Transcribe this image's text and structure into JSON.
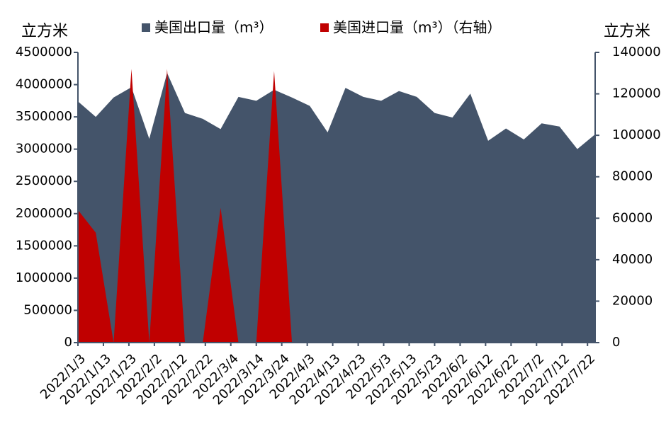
{
  "chart_data": {
    "type": "area",
    "y_label": "立方米",
    "y2_label": "立方米",
    "x": [
      "2022/1/3",
      "2022/1/10",
      "2022/1/17",
      "2022/1/24",
      "2022/1/31",
      "2022/2/7",
      "2022/2/14",
      "2022/2/21",
      "2022/2/28",
      "2022/3/7",
      "2022/3/14",
      "2022/3/21",
      "2022/3/28",
      "2022/4/4",
      "2022/4/11",
      "2022/4/18",
      "2022/4/25",
      "2022/5/2",
      "2022/5/9",
      "2022/5/16",
      "2022/5/23",
      "2022/5/30",
      "2022/6/6",
      "2022/6/13",
      "2022/6/20",
      "2022/6/27",
      "2022/7/4",
      "2022/7/11",
      "2022/7/18",
      "2022/7/25"
    ],
    "xlim": [
      "2022/1/3",
      "2022/7/25"
    ],
    "xticks": [
      "2022/1/3",
      "2022/1/13",
      "2022/1/23",
      "2022/2/2",
      "2022/2/12",
      "2022/2/22",
      "2022/3/4",
      "2022/3/14",
      "2022/3/24",
      "2022/4/3",
      "2022/4/13",
      "2022/4/23",
      "2022/5/3",
      "2022/5/13",
      "2022/5/23",
      "2022/6/2",
      "2022/6/12",
      "2022/6/22",
      "2022/7/2",
      "2022/7/12",
      "2022/7/22"
    ],
    "series": [
      {
        "name": "美国出口量（m³）",
        "color": "#44546a",
        "values": [
          3740000,
          3500000,
          3800000,
          3960000,
          3160000,
          4180000,
          3560000,
          3470000,
          3310000,
          3810000,
          3750000,
          3920000,
          3800000,
          3670000,
          3260000,
          3950000,
          3810000,
          3750000,
          3900000,
          3810000,
          3560000,
          3490000,
          3860000,
          3130000,
          3320000,
          3150000,
          3400000,
          3350000,
          3000000,
          3230000
        ]
      },
      {
        "name": "美国进口量（m³）（右轴）",
        "color": "#c00000",
        "axis": "y2",
        "values": [
          64000,
          53000,
          0,
          132000,
          0,
          132000,
          0,
          0,
          65000,
          0,
          0,
          131000,
          0,
          0,
          0,
          0,
          0,
          0,
          0,
          0,
          0,
          0,
          0,
          0,
          0,
          0,
          0,
          0,
          0,
          0
        ]
      }
    ],
    "ylim": [
      0,
      4500000
    ],
    "yticks": [
      0,
      500000,
      1000000,
      1500000,
      2000000,
      2500000,
      3000000,
      3500000,
      4000000,
      4500000
    ],
    "y2lim": [
      0,
      140000
    ],
    "y2ticks": [
      0,
      20000,
      40000,
      60000,
      80000,
      100000,
      120000,
      140000
    ]
  }
}
